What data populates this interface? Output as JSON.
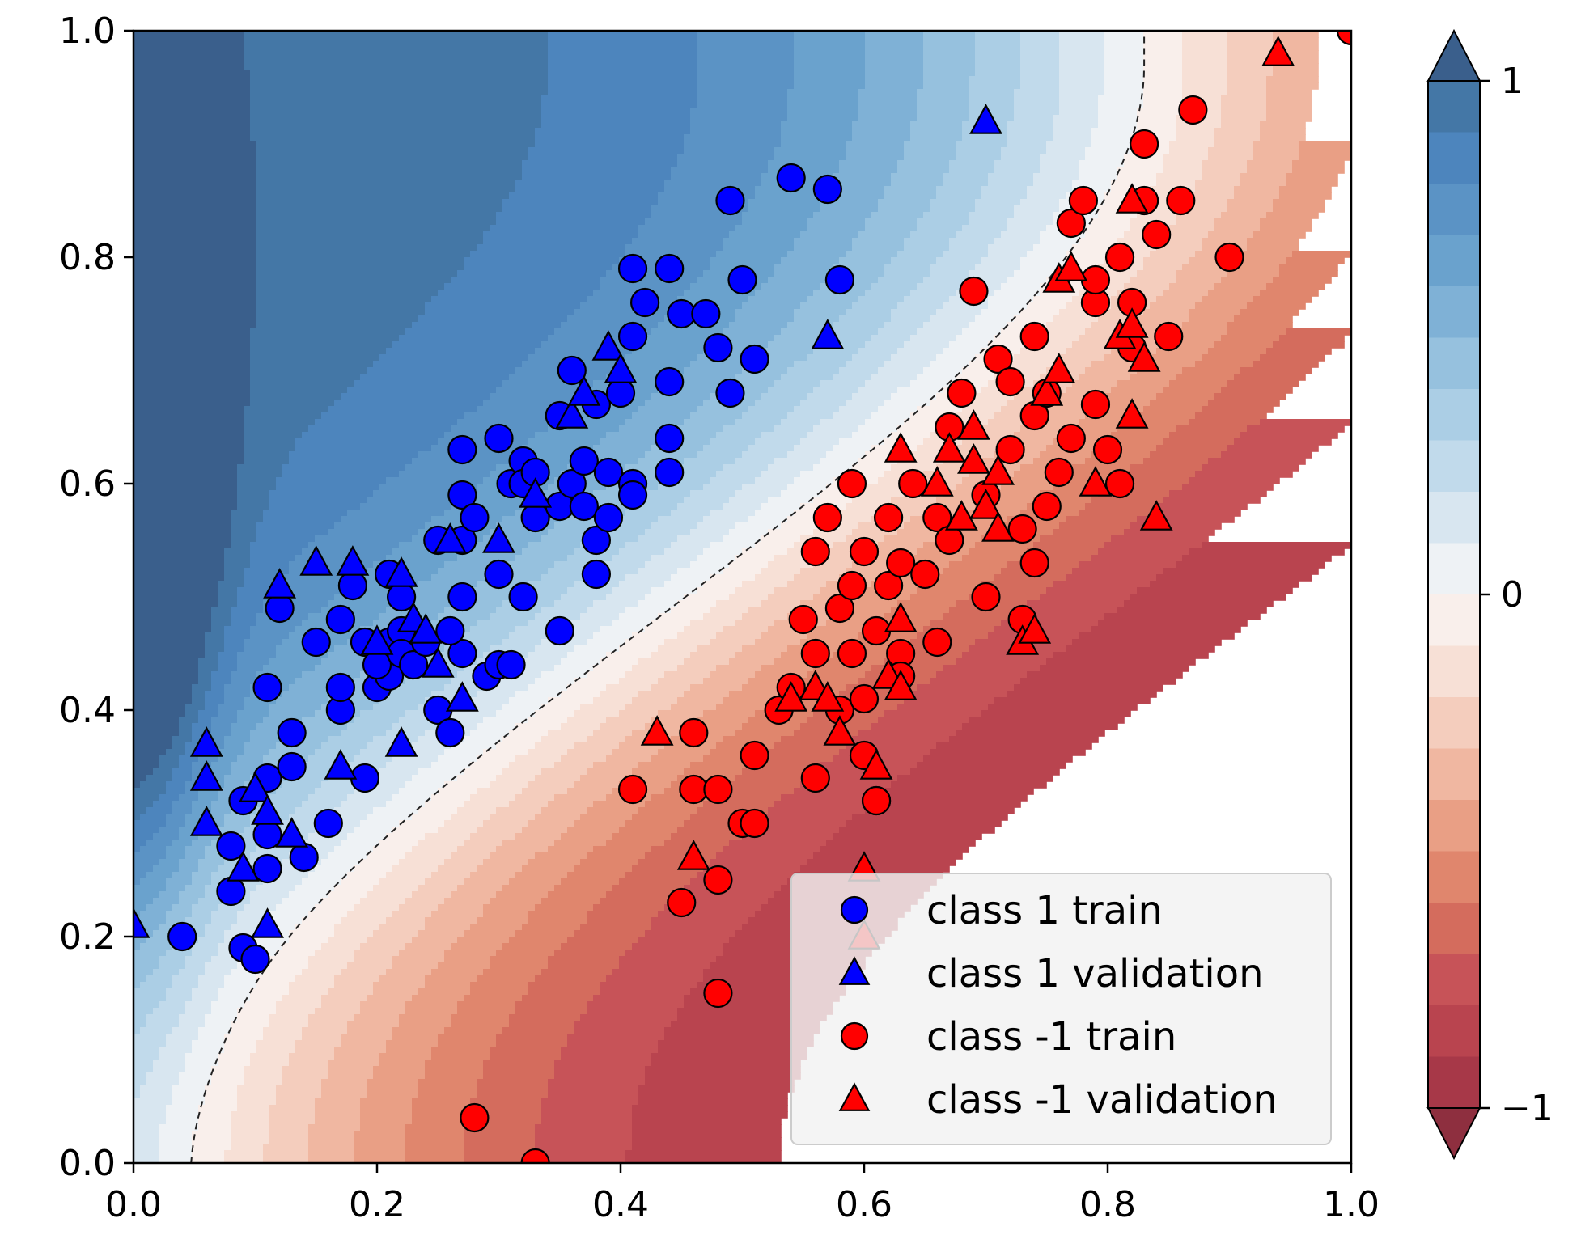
{
  "chart_data": {
    "type": "scatter",
    "title": "",
    "xlabel": "",
    "ylabel": "",
    "xlim": [
      0,
      1
    ],
    "ylim": [
      0,
      1
    ],
    "x_ticks": [
      "0.0",
      "0.2",
      "0.4",
      "0.6",
      "0.8",
      "1.0"
    ],
    "y_ticks": [
      "0.0",
      "0.2",
      "0.4",
      "0.6",
      "0.8",
      "1.0"
    ],
    "background": {
      "kind": "filled-contour decision function",
      "range": [
        -1,
        1
      ],
      "decision_boundary": "dashed line at level 0",
      "colormap": "RdBu"
    },
    "colorbar": {
      "ticks": [
        "1",
        "0",
        "−1"
      ],
      "levels": 20,
      "extend": "both",
      "colors": [
        "#3a5f8c",
        "#4477a6",
        "#4d85bd",
        "#5b93c5",
        "#6aa2cd",
        "#7fb1d6",
        "#96c1de",
        "#abcee5",
        "#c1daeb",
        "#d8e6f0",
        "#eef2f5",
        "#f9efeb",
        "#f7e0d6",
        "#f4cdbd",
        "#f0b7a1",
        "#e99f85",
        "#e0866d",
        "#d46c5d",
        "#c75358",
        "#b9444f",
        "#a73848",
        "#8e2f3f"
      ]
    },
    "series": [
      {
        "name": "class 1 train",
        "marker": "circle",
        "color": "#0000ff",
        "points": [
          [
            0.04,
            0.2
          ],
          [
            0.09,
            0.19
          ],
          [
            0.1,
            0.18
          ],
          [
            0.08,
            0.24
          ],
          [
            0.11,
            0.26
          ],
          [
            0.09,
            0.32
          ],
          [
            0.11,
            0.29
          ],
          [
            0.08,
            0.28
          ],
          [
            0.11,
            0.34
          ],
          [
            0.13,
            0.35
          ],
          [
            0.14,
            0.27
          ],
          [
            0.16,
            0.3
          ],
          [
            0.19,
            0.34
          ],
          [
            0.11,
            0.42
          ],
          [
            0.13,
            0.38
          ],
          [
            0.12,
            0.49
          ],
          [
            0.15,
            0.46
          ],
          [
            0.17,
            0.4
          ],
          [
            0.17,
            0.42
          ],
          [
            0.18,
            0.51
          ],
          [
            0.17,
            0.48
          ],
          [
            0.19,
            0.46
          ],
          [
            0.2,
            0.42
          ],
          [
            0.21,
            0.43
          ],
          [
            0.21,
            0.46
          ],
          [
            0.2,
            0.44
          ],
          [
            0.21,
            0.52
          ],
          [
            0.22,
            0.47
          ],
          [
            0.22,
            0.45
          ],
          [
            0.23,
            0.44
          ],
          [
            0.22,
            0.5
          ],
          [
            0.24,
            0.46
          ],
          [
            0.25,
            0.4
          ],
          [
            0.26,
            0.38
          ],
          [
            0.27,
            0.45
          ],
          [
            0.26,
            0.47
          ],
          [
            0.27,
            0.5
          ],
          [
            0.27,
            0.55
          ],
          [
            0.25,
            0.55
          ],
          [
            0.27,
            0.63
          ],
          [
            0.27,
            0.59
          ],
          [
            0.28,
            0.57
          ],
          [
            0.29,
            0.43
          ],
          [
            0.3,
            0.44
          ],
          [
            0.31,
            0.44
          ],
          [
            0.3,
            0.52
          ],
          [
            0.32,
            0.5
          ],
          [
            0.3,
            0.64
          ],
          [
            0.31,
            0.6
          ],
          [
            0.32,
            0.62
          ],
          [
            0.32,
            0.6
          ],
          [
            0.33,
            0.61
          ],
          [
            0.33,
            0.57
          ],
          [
            0.35,
            0.47
          ],
          [
            0.35,
            0.58
          ],
          [
            0.36,
            0.6
          ],
          [
            0.35,
            0.66
          ],
          [
            0.36,
            0.7
          ],
          [
            0.37,
            0.62
          ],
          [
            0.37,
            0.58
          ],
          [
            0.38,
            0.55
          ],
          [
            0.38,
            0.52
          ],
          [
            0.39,
            0.57
          ],
          [
            0.39,
            0.61
          ],
          [
            0.38,
            0.67
          ],
          [
            0.4,
            0.68
          ],
          [
            0.41,
            0.6
          ],
          [
            0.41,
            0.59
          ],
          [
            0.41,
            0.73
          ],
          [
            0.42,
            0.76
          ],
          [
            0.41,
            0.79
          ],
          [
            0.44,
            0.64
          ],
          [
            0.44,
            0.61
          ],
          [
            0.44,
            0.69
          ],
          [
            0.44,
            0.79
          ],
          [
            0.45,
            0.75
          ],
          [
            0.47,
            0.75
          ],
          [
            0.48,
            0.72
          ],
          [
            0.49,
            0.68
          ],
          [
            0.49,
            0.85
          ],
          [
            0.5,
            0.78
          ],
          [
            0.51,
            0.71
          ],
          [
            0.54,
            0.87
          ],
          [
            0.57,
            0.86
          ],
          [
            0.58,
            0.78
          ]
        ]
      },
      {
        "name": "class 1 validation",
        "marker": "triangle",
        "color": "#0000ff",
        "points": [
          [
            0.0,
            0.21
          ],
          [
            0.06,
            0.37
          ],
          [
            0.06,
            0.34
          ],
          [
            0.06,
            0.3
          ],
          [
            0.09,
            0.26
          ],
          [
            0.1,
            0.33
          ],
          [
            0.11,
            0.31
          ],
          [
            0.11,
            0.21
          ],
          [
            0.12,
            0.51
          ],
          [
            0.13,
            0.29
          ],
          [
            0.15,
            0.53
          ],
          [
            0.17,
            0.35
          ],
          [
            0.18,
            0.53
          ],
          [
            0.2,
            0.46
          ],
          [
            0.22,
            0.37
          ],
          [
            0.22,
            0.52
          ],
          [
            0.23,
            0.48
          ],
          [
            0.24,
            0.47
          ],
          [
            0.25,
            0.44
          ],
          [
            0.26,
            0.55
          ],
          [
            0.27,
            0.41
          ],
          [
            0.3,
            0.55
          ],
          [
            0.33,
            0.59
          ],
          [
            0.36,
            0.66
          ],
          [
            0.37,
            0.68
          ],
          [
            0.39,
            0.72
          ],
          [
            0.4,
            0.7
          ],
          [
            0.57,
            0.73
          ],
          [
            0.7,
            0.92
          ]
        ]
      },
      {
        "name": "class -1 train",
        "marker": "circle",
        "color": "#ff0000",
        "points": [
          [
            0.28,
            0.04
          ],
          [
            0.33,
            0.0
          ],
          [
            0.41,
            0.33
          ],
          [
            0.45,
            0.23
          ],
          [
            0.46,
            0.33
          ],
          [
            0.46,
            0.38
          ],
          [
            0.48,
            0.15
          ],
          [
            0.48,
            0.25
          ],
          [
            0.48,
            0.33
          ],
          [
            0.5,
            0.3
          ],
          [
            0.51,
            0.3
          ],
          [
            0.51,
            0.36
          ],
          [
            0.53,
            0.4
          ],
          [
            0.54,
            0.42
          ],
          [
            0.55,
            0.48
          ],
          [
            0.56,
            0.34
          ],
          [
            0.56,
            0.45
          ],
          [
            0.56,
            0.54
          ],
          [
            0.57,
            0.57
          ],
          [
            0.58,
            0.4
          ],
          [
            0.58,
            0.49
          ],
          [
            0.59,
            0.51
          ],
          [
            0.59,
            0.45
          ],
          [
            0.59,
            0.6
          ],
          [
            0.6,
            0.54
          ],
          [
            0.6,
            0.41
          ],
          [
            0.6,
            0.36
          ],
          [
            0.61,
            0.32
          ],
          [
            0.61,
            0.32
          ],
          [
            0.61,
            0.47
          ],
          [
            0.62,
            0.51
          ],
          [
            0.62,
            0.57
          ],
          [
            0.63,
            0.53
          ],
          [
            0.63,
            0.45
          ],
          [
            0.63,
            0.43
          ],
          [
            0.64,
            0.6
          ],
          [
            0.65,
            0.52
          ],
          [
            0.66,
            0.57
          ],
          [
            0.66,
            0.46
          ],
          [
            0.67,
            0.55
          ],
          [
            0.67,
            0.65
          ],
          [
            0.68,
            0.68
          ],
          [
            0.69,
            0.77
          ],
          [
            0.7,
            0.5
          ],
          [
            0.7,
            0.59
          ],
          [
            0.71,
            0.71
          ],
          [
            0.72,
            0.69
          ],
          [
            0.72,
            0.63
          ],
          [
            0.73,
            0.48
          ],
          [
            0.73,
            0.56
          ],
          [
            0.74,
            0.53
          ],
          [
            0.74,
            0.66
          ],
          [
            0.74,
            0.73
          ],
          [
            0.75,
            0.68
          ],
          [
            0.75,
            0.58
          ],
          [
            0.76,
            0.61
          ],
          [
            0.77,
            0.64
          ],
          [
            0.77,
            0.83
          ],
          [
            0.78,
            0.85
          ],
          [
            0.79,
            0.76
          ],
          [
            0.79,
            0.67
          ],
          [
            0.79,
            0.78
          ],
          [
            0.8,
            0.63
          ],
          [
            0.81,
            0.6
          ],
          [
            0.81,
            0.8
          ],
          [
            0.82,
            0.72
          ],
          [
            0.82,
            0.76
          ],
          [
            0.83,
            0.9
          ],
          [
            0.83,
            0.85
          ],
          [
            0.84,
            0.82
          ],
          [
            0.85,
            0.73
          ],
          [
            0.86,
            0.85
          ],
          [
            0.87,
            0.93
          ],
          [
            0.9,
            0.8
          ],
          [
            1.0,
            1.0
          ]
        ]
      },
      {
        "name": "class -1 validation",
        "marker": "triangle",
        "color": "#ff0000",
        "points": [
          [
            0.43,
            0.38
          ],
          [
            0.46,
            0.27
          ],
          [
            0.54,
            0.41
          ],
          [
            0.56,
            0.42
          ],
          [
            0.57,
            0.41
          ],
          [
            0.58,
            0.38
          ],
          [
            0.6,
            0.26
          ],
          [
            0.6,
            0.2
          ],
          [
            0.61,
            0.35
          ],
          [
            0.62,
            0.43
          ],
          [
            0.63,
            0.48
          ],
          [
            0.63,
            0.42
          ],
          [
            0.63,
            0.63
          ],
          [
            0.66,
            0.6
          ],
          [
            0.67,
            0.63
          ],
          [
            0.68,
            0.57
          ],
          [
            0.69,
            0.65
          ],
          [
            0.69,
            0.62
          ],
          [
            0.7,
            0.58
          ],
          [
            0.71,
            0.61
          ],
          [
            0.71,
            0.56
          ],
          [
            0.73,
            0.46
          ],
          [
            0.74,
            0.47
          ],
          [
            0.75,
            0.68
          ],
          [
            0.76,
            0.7
          ],
          [
            0.76,
            0.78
          ],
          [
            0.77,
            0.79
          ],
          [
            0.79,
            0.6
          ],
          [
            0.81,
            0.73
          ],
          [
            0.82,
            0.66
          ],
          [
            0.82,
            0.74
          ],
          [
            0.83,
            0.71
          ],
          [
            0.84,
            0.57
          ],
          [
            0.82,
            0.85
          ],
          [
            0.94,
            0.98
          ]
        ]
      }
    ],
    "legend": {
      "placement": "lower-right",
      "entries": [
        {
          "label": "class 1 train",
          "marker": "circle",
          "color": "#0000ff"
        },
        {
          "label": "class 1 validation",
          "marker": "triangle",
          "color": "#0000ff"
        },
        {
          "label": "class -1 train",
          "marker": "circle",
          "color": "#ff0000"
        },
        {
          "label": "class -1 validation",
          "marker": "triangle",
          "color": "#ff0000"
        }
      ]
    }
  }
}
